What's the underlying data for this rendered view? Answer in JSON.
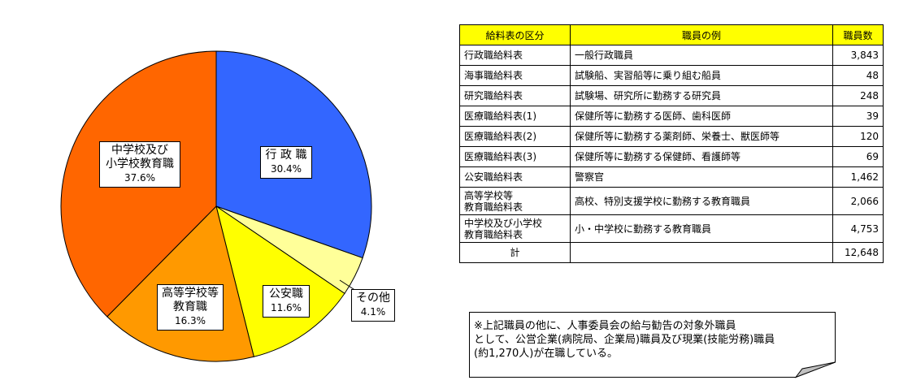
{
  "chart_data": {
    "type": "pie",
    "slices": [
      {
        "name": "行 政 職",
        "percent_label": "30.4%",
        "value": 30.4,
        "color": "#3366ff"
      },
      {
        "name": "その他",
        "percent_label": "4.1%",
        "value": 4.1,
        "color": "#ffff99"
      },
      {
        "name": "公安職",
        "percent_label": "11.6%",
        "value": 11.6,
        "color": "#ffff00"
      },
      {
        "name": "高等学校等\n教育職",
        "percent_label": "16.3%",
        "value": 16.3,
        "color": "#ff9900"
      },
      {
        "name": "中学校及び\n小学校教育職",
        "percent_label": "37.6%",
        "value": 37.6,
        "color": "#ff6600"
      }
    ]
  },
  "table": {
    "headers": [
      "給料表の区分",
      "職員の例",
      "職員数"
    ],
    "rows": [
      {
        "category": "行政職給料表",
        "example": "一般行政職員",
        "count": "3,843"
      },
      {
        "category": "海事職給料表",
        "example": "試験船、実習船等に乗り組む船員",
        "count": "48"
      },
      {
        "category": "研究職給料表",
        "example": "試験場、研究所に勤務する研究員",
        "count": "248"
      },
      {
        "category": "医療職給料表(1)",
        "example": "保健所等に勤務する医師、歯科医師",
        "count": "39"
      },
      {
        "category": "医療職給料表(2)",
        "example": "保健所等に勤務する薬剤師、栄養士、獣医師等",
        "count": "120"
      },
      {
        "category": "医療職給料表(3)",
        "example": "保健所等に勤務する保健師、看護師等",
        "count": "69"
      },
      {
        "category": "公安職給料表",
        "example": "警察官",
        "count": "1,462"
      },
      {
        "category": "高等学校等\n教育職給料表",
        "example": "高校、特別支援学校に勤務する教育職員",
        "count": "2,066"
      },
      {
        "category": "中学校及び小学校\n教育職給料表",
        "example": "小・中学校に勤務する教育職員",
        "count": "4,753"
      }
    ],
    "total": {
      "label": "計",
      "example": "",
      "count": "12,648"
    }
  },
  "note": {
    "text": "※上記職員の他に、人事委員会の給与勧告の対象外職員\nとして、公営企業(病院局、企業局)職員及び現業(技能労務)職員\n(約1,270人)が在職している。"
  }
}
